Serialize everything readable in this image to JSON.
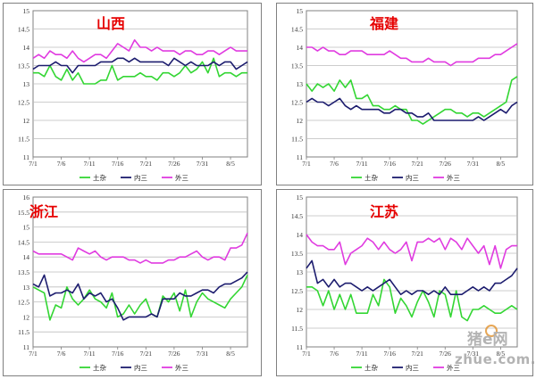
{
  "watermark": {
    "cn": "猪e网",
    "en": "zhue.com.cn"
  },
  "colors": {
    "green": "#33d633",
    "navy": "#1c1c6e",
    "magenta": "#e03be0",
    "title_red": "#e60000",
    "grid": "#bdbdbd"
  },
  "chart_data": [
    {
      "type": "line",
      "title": "山西",
      "ylim": [
        11,
        15
      ],
      "yticks": [
        "11",
        "11.5",
        "12",
        "12.5",
        "13",
        "13.5",
        "14",
        "14.5",
        "15"
      ],
      "x": [
        "7/1",
        "7/2",
        "7/3",
        "7/4",
        "7/5",
        "7/6",
        "7/7",
        "7/8",
        "7/9",
        "7/10",
        "7/11",
        "7/12",
        "7/13",
        "7/14",
        "7/15",
        "7/16",
        "7/17",
        "7/18",
        "7/19",
        "7/20",
        "7/21",
        "7/22",
        "7/23",
        "7/24",
        "7/25",
        "7/26",
        "7/27",
        "7/28",
        "7/29",
        "7/30",
        "7/31",
        "8/1",
        "8/2",
        "8/3",
        "8/4",
        "8/5",
        "8/6",
        "8/7",
        "8/8"
      ],
      "xticks": [
        "7/1",
        "7/6",
        "7/11",
        "7/16",
        "7/21",
        "7/26",
        "7/31",
        "8/5"
      ],
      "series": [
        {
          "name": "土杂",
          "color": "#33d633",
          "values": [
            13.3,
            13.3,
            13.2,
            13.5,
            13.2,
            13.1,
            13.4,
            13.1,
            13.3,
            13.0,
            13.0,
            13.0,
            13.1,
            13.1,
            13.5,
            13.1,
            13.2,
            13.2,
            13.2,
            13.3,
            13.2,
            13.2,
            13.1,
            13.3,
            13.3,
            13.2,
            13.3,
            13.5,
            13.3,
            13.4,
            13.6,
            13.3,
            13.7,
            13.2,
            13.3,
            13.3,
            13.2,
            13.3,
            13.3
          ]
        },
        {
          "name": "内三",
          "color": "#1c1c6e",
          "values": [
            13.4,
            13.5,
            13.5,
            13.5,
            13.6,
            13.5,
            13.5,
            13.3,
            13.5,
            13.5,
            13.5,
            13.5,
            13.6,
            13.6,
            13.6,
            13.7,
            13.7,
            13.6,
            13.7,
            13.6,
            13.6,
            13.6,
            13.6,
            13.6,
            13.5,
            13.7,
            13.6,
            13.5,
            13.6,
            13.5,
            13.5,
            13.5,
            13.6,
            13.5,
            13.6,
            13.6,
            13.4,
            13.5,
            13.6
          ]
        },
        {
          "name": "外三",
          "color": "#e03be0",
          "values": [
            13.7,
            13.8,
            13.7,
            13.9,
            13.8,
            13.8,
            13.7,
            13.9,
            13.7,
            13.6,
            13.7,
            13.8,
            13.8,
            13.7,
            13.9,
            14.1,
            14.0,
            13.9,
            14.2,
            14.0,
            14.0,
            13.9,
            14.0,
            13.9,
            13.9,
            13.9,
            13.8,
            13.9,
            13.9,
            13.8,
            13.8,
            13.9,
            13.9,
            13.8,
            13.9,
            14.0,
            13.9,
            13.9,
            13.9
          ]
        }
      ],
      "legend": "bottom"
    },
    {
      "type": "line",
      "title": "福建",
      "ylim": [
        11,
        15
      ],
      "yticks": [
        "11",
        "11.5",
        "12",
        "12.5",
        "13",
        "13.5",
        "14",
        "14.5",
        "15"
      ],
      "x": [
        "7/1",
        "7/2",
        "7/3",
        "7/4",
        "7/5",
        "7/6",
        "7/7",
        "7/8",
        "7/9",
        "7/10",
        "7/11",
        "7/12",
        "7/13",
        "7/14",
        "7/15",
        "7/16",
        "7/17",
        "7/18",
        "7/19",
        "7/20",
        "7/21",
        "7/22",
        "7/23",
        "7/24",
        "7/25",
        "7/26",
        "7/27",
        "7/28",
        "7/29",
        "7/30",
        "7/31",
        "8/1",
        "8/2",
        "8/3",
        "8/4",
        "8/5",
        "8/6",
        "8/7",
        "8/8"
      ],
      "xticks": [
        "7/1",
        "7/6",
        "7/11",
        "7/16",
        "7/21",
        "7/26",
        "7/31",
        "8/5"
      ],
      "series": [
        {
          "name": "土杂",
          "color": "#33d633",
          "values": [
            13.0,
            12.8,
            13.0,
            12.9,
            13.0,
            12.8,
            13.1,
            12.9,
            13.1,
            12.6,
            12.6,
            12.7,
            12.4,
            12.4,
            12.3,
            12.3,
            12.4,
            12.3,
            12.3,
            12.0,
            12.0,
            11.9,
            12.0,
            12.1,
            12.2,
            12.3,
            12.3,
            12.2,
            12.2,
            12.1,
            12.2,
            12.2,
            12.1,
            12.2,
            12.3,
            12.4,
            12.5,
            13.1,
            13.2
          ]
        },
        {
          "name": "内三",
          "color": "#1c1c6e",
          "values": [
            12.5,
            12.6,
            12.5,
            12.5,
            12.4,
            12.5,
            12.6,
            12.4,
            12.3,
            12.4,
            12.3,
            12.3,
            12.3,
            12.3,
            12.2,
            12.2,
            12.3,
            12.3,
            12.2,
            12.2,
            12.1,
            12.1,
            12.2,
            12.0,
            12.0,
            12.0,
            12.0,
            12.0,
            12.0,
            12.0,
            12.0,
            12.1,
            12.0,
            12.1,
            12.2,
            12.3,
            12.2,
            12.4,
            12.5
          ]
        },
        {
          "name": "外三",
          "color": "#e03be0",
          "values": [
            14.0,
            14.0,
            13.9,
            14.0,
            13.9,
            13.9,
            13.8,
            13.8,
            13.9,
            13.9,
            13.9,
            13.8,
            13.8,
            13.8,
            13.8,
            13.9,
            13.8,
            13.7,
            13.7,
            13.6,
            13.6,
            13.6,
            13.7,
            13.6,
            13.6,
            13.6,
            13.5,
            13.6,
            13.6,
            13.6,
            13.6,
            13.7,
            13.7,
            13.7,
            13.8,
            13.8,
            13.9,
            14.0,
            14.1
          ]
        }
      ],
      "legend": "bottom"
    },
    {
      "type": "line",
      "title": "浙江",
      "ylim": [
        11,
        16
      ],
      "yticks": [
        "11",
        "11.5",
        "12",
        "12.5",
        "13",
        "13.5",
        "14",
        "14.5",
        "15",
        "15.5",
        "16"
      ],
      "x": [
        "7/1",
        "7/2",
        "7/3",
        "7/4",
        "7/5",
        "7/6",
        "7/7",
        "7/8",
        "7/9",
        "7/10",
        "7/11",
        "7/12",
        "7/13",
        "7/14",
        "7/15",
        "7/16",
        "7/17",
        "7/18",
        "7/19",
        "7/20",
        "7/21",
        "7/22",
        "7/23",
        "7/24",
        "7/25",
        "7/26",
        "7/27",
        "7/28",
        "7/29",
        "7/30",
        "7/31",
        "8/1",
        "8/2",
        "8/3",
        "8/4",
        "8/5",
        "8/6",
        "8/7",
        "8/8"
      ],
      "xticks": [
        "7/1",
        "7/6",
        "7/11",
        "7/16",
        "7/21",
        "7/26",
        "7/31",
        "8/5"
      ],
      "series": [
        {
          "name": "土杂",
          "color": "#33d633",
          "values": [
            13.0,
            12.9,
            12.8,
            11.9,
            12.4,
            12.3,
            13.0,
            12.6,
            12.4,
            12.6,
            12.9,
            12.6,
            12.5,
            12.3,
            12.8,
            12.0,
            12.1,
            12.4,
            12.1,
            12.4,
            12.6,
            12.1,
            12.0,
            12.7,
            12.5,
            12.8,
            12.2,
            12.9,
            12.0,
            12.5,
            12.8,
            12.6,
            12.5,
            12.4,
            12.3,
            12.6,
            12.8,
            13.0,
            13.4
          ]
        },
        {
          "name": "内三",
          "color": "#1c1c6e",
          "values": [
            13.1,
            13.0,
            13.4,
            12.7,
            12.8,
            12.8,
            12.9,
            12.8,
            13.1,
            12.6,
            12.8,
            12.7,
            12.8,
            12.5,
            12.6,
            12.3,
            11.9,
            12.0,
            12.0,
            12.0,
            12.0,
            12.1,
            12.0,
            12.6,
            12.6,
            12.6,
            12.8,
            12.7,
            12.7,
            12.8,
            12.9,
            12.9,
            12.8,
            13.0,
            13.1,
            13.1,
            13.2,
            13.3,
            13.5
          ]
        },
        {
          "name": "外三",
          "color": "#e03be0",
          "values": [
            14.2,
            14.1,
            14.1,
            14.1,
            14.1,
            14.1,
            14.0,
            13.9,
            14.3,
            14.2,
            14.1,
            14.2,
            14.0,
            13.9,
            14.0,
            14.0,
            14.0,
            13.9,
            13.9,
            13.8,
            13.9,
            13.8,
            13.8,
            13.8,
            13.9,
            13.9,
            14.0,
            14.0,
            14.1,
            14.2,
            14.0,
            13.9,
            14.0,
            14.0,
            13.9,
            14.3,
            14.3,
            14.4,
            14.8
          ]
        }
      ],
      "legend": "bottom"
    },
    {
      "type": "line",
      "title": "江苏",
      "ylim": [
        11,
        15
      ],
      "yticks": [
        "11",
        "11.5",
        "12",
        "12.5",
        "13",
        "13.5",
        "14",
        "14.5",
        "15"
      ],
      "x": [
        "7/1",
        "7/2",
        "7/3",
        "7/4",
        "7/5",
        "7/6",
        "7/7",
        "7/8",
        "7/9",
        "7/10",
        "7/11",
        "7/12",
        "7/13",
        "7/14",
        "7/15",
        "7/16",
        "7/17",
        "7/18",
        "7/19",
        "7/20",
        "7/21",
        "7/22",
        "7/23",
        "7/24",
        "7/25",
        "7/26",
        "7/27",
        "7/28",
        "7/29",
        "7/30",
        "7/31",
        "8/1",
        "8/2",
        "8/3",
        "8/4",
        "8/5",
        "8/6",
        "8/7",
        "8/8"
      ],
      "xticks": [
        "7/1",
        "7/6",
        "7/11",
        "7/16",
        "7/21",
        "7/26",
        "7/31",
        "8/5"
      ],
      "series": [
        {
          "name": "土杂",
          "color": "#33d633",
          "values": [
            12.6,
            12.6,
            12.5,
            12.1,
            12.5,
            12.0,
            12.4,
            12.0,
            12.4,
            11.9,
            11.9,
            11.9,
            12.4,
            12.1,
            12.8,
            12.6,
            11.9,
            12.3,
            12.1,
            11.8,
            12.2,
            12.5,
            12.2,
            11.8,
            12.5,
            12.4,
            11.8,
            12.5,
            11.8,
            11.7,
            12.0,
            12.0,
            12.1,
            12.0,
            11.9,
            11.9,
            12.0,
            12.1,
            12.0
          ]
        },
        {
          "name": "内三",
          "color": "#1c1c6e",
          "values": [
            13.1,
            13.3,
            12.7,
            12.8,
            12.6,
            12.8,
            12.6,
            12.7,
            12.7,
            12.6,
            12.5,
            12.6,
            12.5,
            12.6,
            12.7,
            12.8,
            12.6,
            12.4,
            12.5,
            12.4,
            12.5,
            12.5,
            12.4,
            12.5,
            12.4,
            12.6,
            12.4,
            12.4,
            12.4,
            12.5,
            12.6,
            12.5,
            12.6,
            12.5,
            12.7,
            12.7,
            12.8,
            12.9,
            13.1
          ]
        },
        {
          "name": "外三",
          "color": "#e03be0",
          "values": [
            14.0,
            13.8,
            13.7,
            13.7,
            13.6,
            13.6,
            13.8,
            13.2,
            13.5,
            13.6,
            13.7,
            13.9,
            13.8,
            13.6,
            13.8,
            13.6,
            13.5,
            13.6,
            13.8,
            13.3,
            13.8,
            13.8,
            13.9,
            13.8,
            13.9,
            13.6,
            13.9,
            13.8,
            13.6,
            13.9,
            13.7,
            13.5,
            13.7,
            13.2,
            13.7,
            13.1,
            13.6,
            13.7,
            13.7
          ]
        }
      ],
      "legend": "bottom"
    }
  ]
}
